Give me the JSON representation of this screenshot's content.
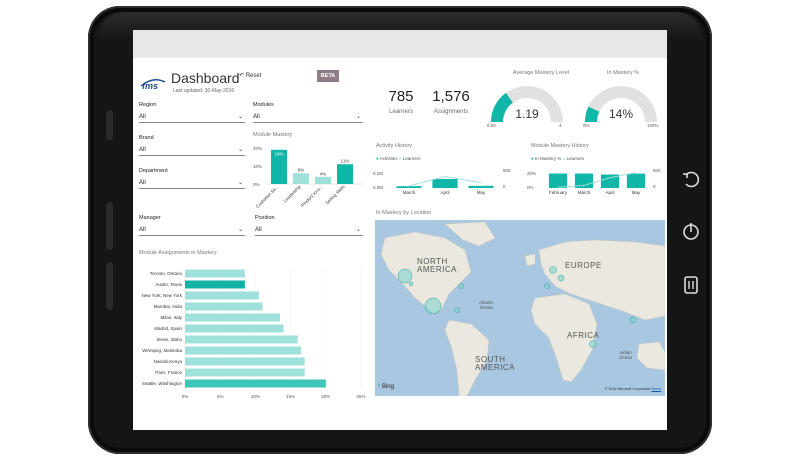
{
  "header": {
    "logo_text": "fms",
    "title": "Dashboard",
    "last_updated": "Last updated: 30-May-2016",
    "reset_label": "Reset",
    "beta_label": "BETA"
  },
  "filters": {
    "region": {
      "label": "Region",
      "value": "All"
    },
    "modules": {
      "label": "Modules",
      "value": "All"
    },
    "brand": {
      "label": "Brand",
      "value": "All"
    },
    "department": {
      "label": "Department",
      "value": "All"
    },
    "manager": {
      "label": "Manager",
      "value": "All"
    },
    "position": {
      "label": "Position",
      "value": "All"
    }
  },
  "kpis": {
    "learners_value": "785",
    "learners_label": "Learners",
    "assignments_value": "1,576",
    "assignments_label": "Assignments"
  },
  "gauges": {
    "avg_mastery": {
      "title": "Average Mastery Level",
      "value": "1.19",
      "min": "0.00",
      "max": "4",
      "fraction": 0.3
    },
    "in_mastery": {
      "title": "In Mastery %",
      "value": "14%",
      "min": "0%",
      "max": "100%",
      "fraction": 0.14
    }
  },
  "module_mastery": {
    "title": "Module Mastery",
    "chart_data": {
      "type": "bar",
      "categories": [
        "Customer Se...",
        "Leadership",
        "Product Kno...",
        "Selling Skills"
      ],
      "values": [
        19,
        6,
        4,
        11
      ],
      "labels": [
        "19%",
        "6%",
        "4%",
        "11%"
      ],
      "y_ticks": [
        "20%",
        "10%",
        "0%"
      ],
      "ylim": [
        0,
        20
      ]
    }
  },
  "activity_history": {
    "title": "Activity History",
    "legend": [
      "Activities",
      "Learners"
    ],
    "chart_data": {
      "type": "bar",
      "categories": [
        "March",
        "April",
        "May"
      ],
      "y_left": [
        "0.1M",
        "0.0M"
      ],
      "y_right": [
        "500",
        "0"
      ],
      "series": [
        {
          "name": "Activities",
          "values": [
            0.01,
            0.05,
            0.012
          ]
        },
        {
          "name": "Learners",
          "values": [
            60,
            320,
            150
          ]
        }
      ]
    }
  },
  "module_mastery_history": {
    "title": "Module Mastery History",
    "legend": [
      "In Mastery %",
      "Learners"
    ],
    "chart_data": {
      "type": "bar",
      "categories": [
        "February",
        "March",
        "April",
        "May"
      ],
      "y_left": [
        "20%",
        "0%"
      ],
      "y_right": [
        "500",
        "0"
      ],
      "series": [
        {
          "name": "In Mastery %",
          "values": [
            16,
            16,
            15,
            16
          ]
        },
        {
          "name": "Learners",
          "values": [
            30,
            100,
            400,
            600
          ]
        }
      ]
    }
  },
  "assignments_chart": {
    "title": "Module Assignments in Mastery",
    "chart_data": {
      "type": "bar",
      "orientation": "horizontal",
      "categories": [
        "Toronto, Ontario",
        "Austin, Texas",
        "New York, New York",
        "Mumbai, India",
        "Milan, Italy",
        "Madrid, Spain",
        "Boise, Idaho",
        "Winnipeg, Manitoba",
        "Nairobi,Kenya",
        "Paris, France",
        "Seattle, Washington"
      ],
      "values": [
        8.5,
        8.5,
        10.5,
        11,
        13.5,
        14,
        16,
        16.5,
        17,
        17,
        20
      ],
      "x_ticks": [
        "0%",
        "5%",
        "10%",
        "15%",
        "20%",
        "25%"
      ],
      "xlim": [
        0,
        25
      ]
    }
  },
  "map": {
    "title": "In Mastery by Location",
    "labels": {
      "north_america": [
        "NORTH",
        "AMERICA"
      ],
      "europe": [
        "EUROPE"
      ],
      "africa": [
        "AFRICA"
      ],
      "south_america": [
        "SOUTH",
        "AMERICA"
      ]
    },
    "oceans": {
      "atlantic": [
        "Atlantic",
        "Ocean"
      ],
      "indian": [
        "Indian",
        "Ocean"
      ]
    },
    "bing": "Bing",
    "copyright": "© 2016 Microsoft Corporation",
    "terms": "Terms"
  },
  "colors": {
    "teal": "#10b7a8",
    "teal_light": "#9fe0da",
    "bezel": "#151515",
    "beta": "#8c7d87"
  }
}
